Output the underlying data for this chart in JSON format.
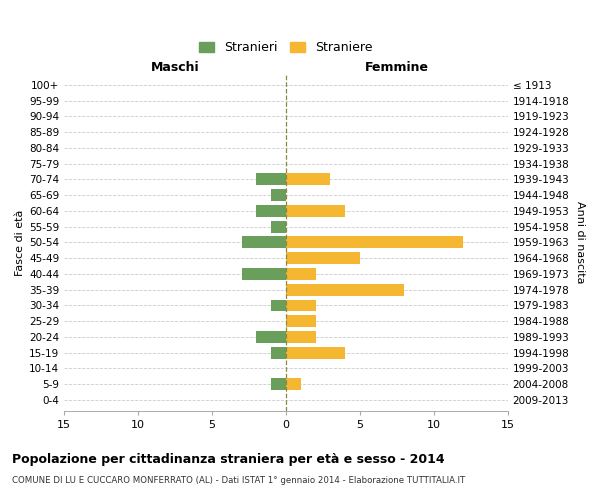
{
  "age_groups": [
    "100+",
    "95-99",
    "90-94",
    "85-89",
    "80-84",
    "75-79",
    "70-74",
    "65-69",
    "60-64",
    "55-59",
    "50-54",
    "45-49",
    "40-44",
    "35-39",
    "30-34",
    "25-29",
    "20-24",
    "15-19",
    "10-14",
    "5-9",
    "0-4"
  ],
  "birth_years": [
    "≤ 1913",
    "1914-1918",
    "1919-1923",
    "1924-1928",
    "1929-1933",
    "1934-1938",
    "1939-1943",
    "1944-1948",
    "1949-1953",
    "1954-1958",
    "1959-1963",
    "1964-1968",
    "1969-1973",
    "1974-1978",
    "1979-1983",
    "1984-1988",
    "1989-1993",
    "1994-1998",
    "1999-2003",
    "2004-2008",
    "2009-2013"
  ],
  "males": [
    0,
    0,
    0,
    0,
    0,
    0,
    2,
    1,
    2,
    1,
    3,
    0,
    3,
    0,
    1,
    0,
    2,
    1,
    0,
    1,
    0
  ],
  "females": [
    0,
    0,
    0,
    0,
    0,
    0,
    3,
    0,
    4,
    0,
    12,
    5,
    2,
    8,
    2,
    2,
    2,
    4,
    0,
    1,
    0
  ],
  "male_color": "#6a9e5b",
  "female_color": "#f5b731",
  "title": "Popolazione per cittadinanza straniera per età e sesso - 2014",
  "subtitle": "COMUNE DI LU E CUCCARO MONFERRATO (AL) - Dati ISTAT 1° gennaio 2014 - Elaborazione TUTTITALIA.IT",
  "xlabel_left": "Maschi",
  "xlabel_right": "Femmine",
  "ylabel": "Fasce di età",
  "ylabel_right": "Anni di nascita",
  "legend_male": "Stranieri",
  "legend_female": "Straniere",
  "xlim": 15,
  "xticks": [
    -15,
    -10,
    -5,
    0,
    5,
    10,
    15
  ],
  "xtick_labels": [
    "15",
    "10",
    "5",
    "0",
    "5",
    "10",
    "15"
  ],
  "background_color": "#ffffff",
  "grid_color": "#cccccc",
  "bar_height": 0.75
}
